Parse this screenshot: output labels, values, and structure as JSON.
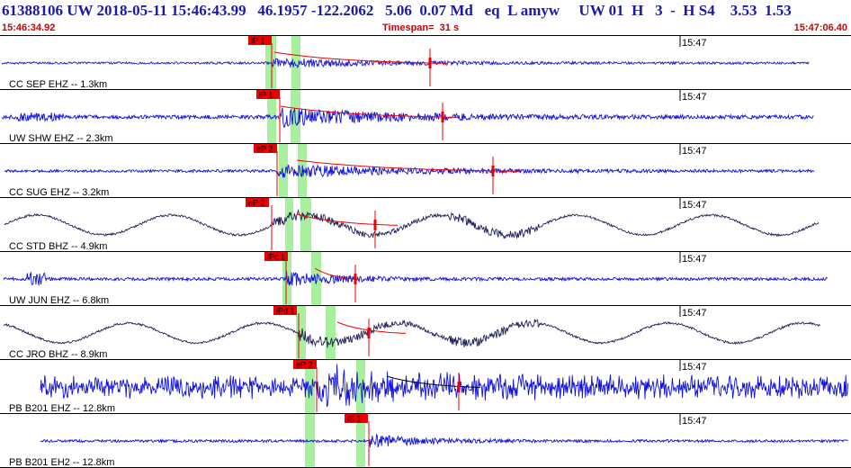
{
  "header": {
    "title": "61388106 UW 2018-05-11 15:46:43.99   46.1957 -122.2062   5.06  0.07 Md   eq  L amyw     UW 01  H   3  -  H S4    3.53  1.53",
    "time_start": "15:46:34.92",
    "timespan": "Timespan=  31 s",
    "time_end": "15:47:06.40"
  },
  "colors": {
    "trace_blue": "#1010e0",
    "trace_dark": "#20205a",
    "pick_red": "#ee0000",
    "highlight_green": "#a8f0a0",
    "header_text": "#1a1aa8",
    "header_sub": "#cc0000"
  },
  "minute_mark": "15:47",
  "traces": [
    {
      "label": "CC SEP EHZ -- 1.3km",
      "pick": "iP 1",
      "color": "dark_blue",
      "amplitude": "low-to-medium"
    },
    {
      "label": "UW SHW EHZ -- 2.3km",
      "pick": "iP 1",
      "color": "blue",
      "amplitude": "medium"
    },
    {
      "label": "CC SUG EHZ -- 3.2km",
      "pick": "eP 2",
      "color": "blue",
      "amplitude": "low-to-medium"
    },
    {
      "label": "CC STD BHZ -- 4.9km",
      "pick": "eP 2",
      "color": "dark",
      "amplitude": "long-period"
    },
    {
      "label": "UW JUN EHZ -- 6.8km",
      "pick": "iPc 1",
      "color": "blue",
      "amplitude": "medium"
    },
    {
      "label": "CC JRO BHZ -- 8.9km",
      "pick": "iPd 1",
      "color": "dark",
      "amplitude": "long-period"
    },
    {
      "label": "PB B201 EHZ -- 12.8km",
      "pick": "eP 2",
      "color": "blue",
      "amplitude": "high"
    },
    {
      "label": "PB B201 EH2 -- 12.8km",
      "pick": "iS 1",
      "color": "blue",
      "amplitude": "medium"
    }
  ]
}
